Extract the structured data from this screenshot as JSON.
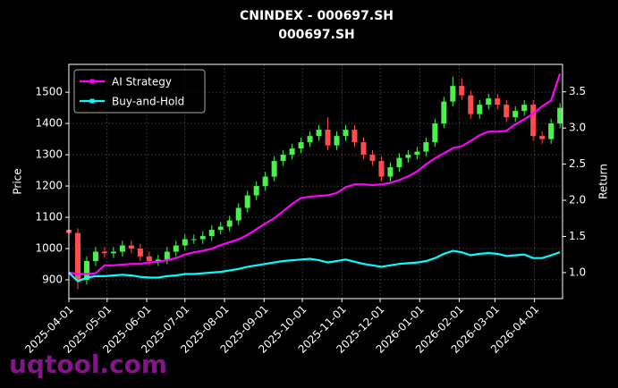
{
  "chart_data": {
    "type": "candlestick",
    "title": "CNINDEX - 000697.SH",
    "subtitle": "000697.SH",
    "ylabel": "Price",
    "y2label": "Return",
    "watermark": "uqtool.com",
    "x": [
      "2025-04-01",
      "2025-04-08",
      "2025-04-15",
      "2025-04-22",
      "2025-04-29",
      "2025-05-06",
      "2025-05-13",
      "2025-05-20",
      "2025-05-27",
      "2025-06-03",
      "2025-06-10",
      "2025-06-17",
      "2025-06-24",
      "2025-07-01",
      "2025-07-08",
      "2025-07-15",
      "2025-07-22",
      "2025-07-29",
      "2025-08-05",
      "2025-08-12",
      "2025-08-19",
      "2025-08-26",
      "2025-09-02",
      "2025-09-09",
      "2025-09-16",
      "2025-09-23",
      "2025-09-30",
      "2025-10-07",
      "2025-10-14",
      "2025-10-21",
      "2025-10-28",
      "2025-11-04",
      "2025-11-11",
      "2025-11-18",
      "2025-11-25",
      "2025-12-02",
      "2025-12-09",
      "2025-12-16",
      "2025-12-23",
      "2025-12-30",
      "2026-01-06",
      "2026-01-13",
      "2026-01-20",
      "2026-01-27",
      "2026-02-03",
      "2026-02-10",
      "2026-02-17",
      "2026-02-24",
      "2026-03-03",
      "2026-03-10",
      "2026-03-17",
      "2026-03-24",
      "2026-03-31",
      "2026-04-07",
      "2026-04-14",
      "2026-04-21"
    ],
    "open": [
      1060,
      1050,
      900,
      960,
      990,
      985,
      990,
      1010,
      1000,
      975,
      960,
      965,
      990,
      1010,
      1030,
      1030,
      1040,
      1060,
      1070,
      1090,
      1130,
      1170,
      1200,
      1230,
      1280,
      1300,
      1320,
      1340,
      1360,
      1380,
      1330,
      1360,
      1380,
      1340,
      1300,
      1280,
      1230,
      1260,
      1290,
      1300,
      1310,
      1340,
      1400,
      1470,
      1520,
      1490,
      1430,
      1460,
      1480,
      1460,
      1420,
      1440,
      1460,
      1360,
      1350,
      1400
    ],
    "high": [
      1075,
      1065,
      975,
      1005,
      1005,
      1005,
      1025,
      1025,
      1015,
      990,
      980,
      1005,
      1025,
      1045,
      1045,
      1055,
      1075,
      1085,
      1105,
      1145,
      1185,
      1215,
      1245,
      1295,
      1315,
      1335,
      1355,
      1375,
      1395,
      1420,
      1375,
      1395,
      1395,
      1355,
      1315,
      1295,
      1275,
      1305,
      1315,
      1325,
      1355,
      1415,
      1485,
      1550,
      1545,
      1505,
      1475,
      1495,
      1495,
      1475,
      1455,
      1475,
      1475,
      1375,
      1415,
      1465
    ],
    "low": [
      1035,
      870,
      885,
      945,
      970,
      970,
      975,
      985,
      960,
      945,
      945,
      950,
      975,
      995,
      1015,
      1015,
      1025,
      1045,
      1055,
      1075,
      1115,
      1155,
      1185,
      1215,
      1265,
      1285,
      1305,
      1325,
      1345,
      1315,
      1315,
      1345,
      1325,
      1285,
      1265,
      1215,
      1215,
      1245,
      1275,
      1285,
      1295,
      1325,
      1385,
      1455,
      1475,
      1415,
      1415,
      1445,
      1445,
      1405,
      1405,
      1425,
      1345,
      1335,
      1335,
      1385
    ],
    "close": [
      1050,
      900,
      960,
      990,
      985,
      990,
      1010,
      1000,
      975,
      960,
      965,
      990,
      1010,
      1030,
      1030,
      1040,
      1060,
      1070,
      1090,
      1130,
      1170,
      1200,
      1230,
      1280,
      1300,
      1320,
      1340,
      1360,
      1380,
      1330,
      1360,
      1380,
      1340,
      1300,
      1280,
      1230,
      1260,
      1290,
      1300,
      1310,
      1340,
      1400,
      1470,
      1520,
      1490,
      1430,
      1460,
      1480,
      1460,
      1420,
      1440,
      1460,
      1360,
      1350,
      1400,
      1450
    ],
    "up_color": "#4cf04c",
    "down_color": "#ff4d4d",
    "series": [
      {
        "name": "AI Strategy",
        "color": "#ff00ff",
        "axis": "y2",
        "values": [
          1.0,
          0.98,
          0.98,
          0.99,
          1.1,
          1.1,
          1.11,
          1.12,
          1.12,
          1.14,
          1.15,
          1.17,
          1.2,
          1.25,
          1.28,
          1.3,
          1.33,
          1.38,
          1.42,
          1.46,
          1.52,
          1.6,
          1.68,
          1.75,
          1.85,
          1.95,
          2.03,
          2.05,
          2.06,
          2.07,
          2.1,
          2.18,
          2.22,
          2.22,
          2.21,
          2.22,
          2.24,
          2.28,
          2.33,
          2.4,
          2.5,
          2.58,
          2.65,
          2.72,
          2.75,
          2.82,
          2.9,
          2.95,
          2.95,
          2.96,
          3.05,
          3.12,
          3.2,
          3.3,
          3.38,
          3.75
        ]
      },
      {
        "name": "Buy-and-Hold",
        "color": "#00ffff",
        "axis": "y2",
        "values": [
          1.0,
          0.88,
          0.93,
          0.95,
          0.95,
          0.96,
          0.97,
          0.96,
          0.94,
          0.93,
          0.93,
          0.95,
          0.96,
          0.98,
          0.98,
          0.99,
          1.0,
          1.01,
          1.03,
          1.05,
          1.08,
          1.1,
          1.12,
          1.14,
          1.16,
          1.17,
          1.18,
          1.19,
          1.17,
          1.14,
          1.16,
          1.18,
          1.15,
          1.12,
          1.1,
          1.08,
          1.1,
          1.12,
          1.13,
          1.14,
          1.16,
          1.2,
          1.26,
          1.3,
          1.28,
          1.24,
          1.26,
          1.27,
          1.26,
          1.23,
          1.24,
          1.25,
          1.2,
          1.2,
          1.24,
          1.28
        ]
      }
    ],
    "xlim": [
      "2025-04-01",
      "2026-04-23"
    ],
    "xticks": [
      "2025-04-01",
      "2025-05-01",
      "2025-06-01",
      "2025-07-01",
      "2025-08-01",
      "2025-09-01",
      "2025-10-01",
      "2025-11-01",
      "2025-12-01",
      "2026-01-01",
      "2026-02-01",
      "2026-03-01",
      "2026-04-01"
    ],
    "ylim": [
      840,
      1589
    ],
    "yticks": [
      900,
      1000,
      1100,
      1200,
      1300,
      1400,
      1500
    ],
    "y2lim": [
      0.64,
      3.88
    ],
    "y2ticks": [
      {
        "value": 1.0,
        "label": "1.0"
      },
      1.5,
      {
        "value": 2.0,
        "label": "2.0"
      },
      2.5,
      {
        "value": 3.0,
        "label": "3.0"
      },
      3.5
    ],
    "grid": true,
    "legend": "upper left"
  }
}
